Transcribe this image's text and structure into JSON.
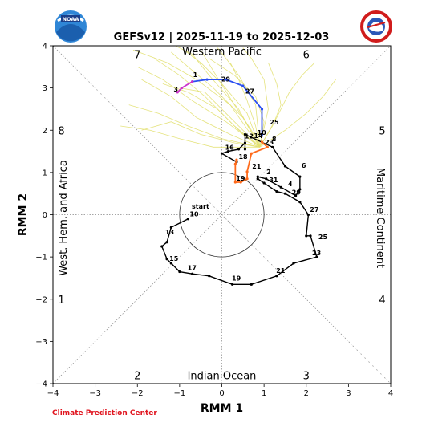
{
  "title": "GEFSv12 | 2025-11-19 to 2025-12-03",
  "credit": "Climate Prediction Center",
  "colors": {
    "observed": "#000000",
    "forecast_early": "#ff6a1a",
    "forecast_late": "#2a4ef0",
    "ensemble": "#e2e070",
    "forecast_tail": "#cc33cc",
    "credit": "#e0141e"
  },
  "logos": [
    "noaa-logo",
    "nws-logo"
  ],
  "chart_data": {
    "type": "line",
    "xlabel": "RMM 1",
    "ylabel": "RMM 2",
    "xlim": [
      -4,
      4
    ],
    "ylim": [
      -4,
      4
    ],
    "xticks": [
      "−4",
      "−3",
      "−2",
      "−1",
      "0",
      "1",
      "2",
      "3",
      "4"
    ],
    "yticks": [
      "−4",
      "−3",
      "−2",
      "−1",
      "0",
      "1",
      "2",
      "3",
      "4"
    ],
    "unit_circle_radius": 1,
    "regions": {
      "top": "Western Pacific",
      "bottom": "Indian Ocean",
      "left": "West. Hem. and Africa",
      "right": "Maritime Continent"
    },
    "phases": [
      {
        "label": "7",
        "x": -2.0,
        "y": 3.8
      },
      {
        "label": "6",
        "x": 2.0,
        "y": 3.8
      },
      {
        "label": "8",
        "x": -3.8,
        "y": 2.0
      },
      {
        "label": "5",
        "x": 3.8,
        "y": 2.0
      },
      {
        "label": "1",
        "x": -3.8,
        "y": -2.0
      },
      {
        "label": "4",
        "x": 3.8,
        "y": -2.0
      },
      {
        "label": "2",
        "x": -2.0,
        "y": -3.8
      },
      {
        "label": "3",
        "x": 2.0,
        "y": -3.8
      }
    ],
    "observed": {
      "points": [
        [
          -0.8,
          -0.1
        ],
        [
          -1.2,
          -0.3
        ],
        [
          -1.3,
          -0.65
        ],
        [
          -1.42,
          -0.75
        ],
        [
          -1.3,
          -1.05
        ],
        [
          -1.2,
          -1.15
        ],
        [
          -1.0,
          -1.35
        ],
        [
          -0.7,
          -1.4
        ],
        [
          -0.3,
          -1.45
        ],
        [
          0.25,
          -1.65
        ],
        [
          0.7,
          -1.65
        ],
        [
          1.3,
          -1.45
        ],
        [
          1.7,
          -1.15
        ],
        [
          2.25,
          -1.0
        ],
        [
          2.1,
          -0.5
        ],
        [
          2.0,
          -0.5
        ],
        [
          2.05,
          0.0
        ],
        [
          1.85,
          0.3
        ],
        [
          1.5,
          0.5
        ],
        [
          1.3,
          0.55
        ],
        [
          1.0,
          0.75
        ],
        [
          0.85,
          0.85
        ],
        [
          0.85,
          0.9
        ],
        [
          1.05,
          0.85
        ],
        [
          1.4,
          0.65
        ],
        [
          1.75,
          0.45
        ],
        [
          1.85,
          0.6
        ],
        [
          1.85,
          0.9
        ],
        [
          1.5,
          1.15
        ],
        [
          1.2,
          1.6
        ],
        [
          0.55,
          1.9
        ],
        [
          0.55,
          1.55
        ],
        [
          0.55,
          1.7
        ],
        [
          0.4,
          1.55
        ],
        [
          0.15,
          1.5
        ],
        [
          0.0,
          1.45
        ],
        [
          0.35,
          1.25
        ]
      ],
      "labels": [
        {
          "text": "start",
          "x": -0.75,
          "y": 0.1
        },
        {
          "text": "10",
          "x": -0.8,
          "y": -0.08
        },
        {
          "text": "13",
          "x": -1.38,
          "y": -0.5
        },
        {
          "text": "15",
          "x": -1.28,
          "y": -1.13
        },
        {
          "text": "17",
          "x": -0.85,
          "y": -1.35
        },
        {
          "text": "19",
          "x": 0.2,
          "y": -1.6
        },
        {
          "text": "21",
          "x": 1.25,
          "y": -1.42
        },
        {
          "text": "23",
          "x": 2.1,
          "y": -1.0
        },
        {
          "text": "25",
          "x": 2.25,
          "y": -0.62
        },
        {
          "text": "27",
          "x": 2.05,
          "y": 0.03
        },
        {
          "text": "29",
          "x": 1.62,
          "y": 0.44
        },
        {
          "text": "2",
          "x": 1.02,
          "y": 0.92
        },
        {
          "text": "31",
          "x": 1.08,
          "y": 0.73
        },
        {
          "text": "4",
          "x": 1.53,
          "y": 0.64
        },
        {
          "text": "6",
          "x": 1.85,
          "y": 1.07
        },
        {
          "text": "8",
          "x": 1.15,
          "y": 1.7
        },
        {
          "text": "10",
          "x": 0.8,
          "y": 1.85
        },
        {
          "text": "12",
          "x": 0.5,
          "y": 1.77
        },
        {
          "text": "14",
          "x": 0.72,
          "y": 1.78
        },
        {
          "text": "16",
          "x": 0.04,
          "y": 1.5
        },
        {
          "text": "18",
          "x": 0.36,
          "y": 1.28
        }
      ]
    },
    "forecast": {
      "early": [
        [
          0.95,
          1.72
        ],
        [
          1.08,
          1.6
        ],
        [
          0.7,
          1.45
        ],
        [
          0.6,
          1.02
        ],
        [
          0.6,
          0.85
        ],
        [
          0.45,
          0.77
        ],
        [
          0.32,
          0.77
        ],
        [
          0.32,
          1.2
        ],
        [
          0.35,
          1.3
        ]
      ],
      "late": [
        [
          0.95,
          1.9
        ],
        [
          0.95,
          2.5
        ],
        [
          0.5,
          3.05
        ],
        [
          0.1,
          3.2
        ],
        [
          -0.35,
          3.2
        ],
        [
          -0.7,
          3.15
        ]
      ],
      "tail": [
        [
          -0.7,
          3.15
        ],
        [
          -0.95,
          3.0
        ],
        [
          -1.05,
          2.9
        ]
      ],
      "labels": [
        {
          "text": "23",
          "x": 0.98,
          "y": 1.62
        },
        {
          "text": "21",
          "x": 0.68,
          "y": 1.05
        },
        {
          "text": "19",
          "x": 0.3,
          "y": 0.77
        },
        {
          "text": "25",
          "x": 1.1,
          "y": 2.1
        },
        {
          "text": "27",
          "x": 0.52,
          "y": 2.83
        },
        {
          "text": "29",
          "x": -0.05,
          "y": 3.12
        },
        {
          "text": "1",
          "x": -0.72,
          "y": 3.22
        },
        {
          "text": "3",
          "x": -1.18,
          "y": 2.88
        }
      ]
    },
    "ensemble_members": [
      [
        [
          0.9,
          1.6
        ],
        [
          0.3,
          2.1
        ],
        [
          -0.4,
          2.8
        ],
        [
          -1.0,
          3.3
        ],
        [
          -1.6,
          3.7
        ]
      ],
      [
        [
          0.9,
          1.6
        ],
        [
          0.5,
          2.3
        ],
        [
          -0.2,
          3.0
        ],
        [
          -0.8,
          3.5
        ],
        [
          -1.2,
          3.85
        ]
      ],
      [
        [
          0.9,
          1.6
        ],
        [
          0.6,
          2.4
        ],
        [
          0.0,
          3.1
        ],
        [
          -0.5,
          3.6
        ],
        [
          -0.9,
          3.9
        ]
      ],
      [
        [
          0.9,
          1.6
        ],
        [
          0.2,
          1.9
        ],
        [
          -0.6,
          2.3
        ],
        [
          -1.2,
          2.8
        ],
        [
          -1.9,
          3.2
        ]
      ],
      [
        [
          0.9,
          1.6
        ],
        [
          0.0,
          1.8
        ],
        [
          -0.8,
          2.1
        ],
        [
          -1.5,
          2.4
        ],
        [
          -2.2,
          2.6
        ]
      ],
      [
        [
          0.9,
          1.6
        ],
        [
          0.8,
          2.6
        ],
        [
          0.4,
          3.3
        ],
        [
          0.1,
          3.7
        ],
        [
          -0.1,
          3.95
        ]
      ],
      [
        [
          0.9,
          1.6
        ],
        [
          1.1,
          2.5
        ],
        [
          1.0,
          3.2
        ],
        [
          0.7,
          3.7
        ],
        [
          0.5,
          3.95
        ]
      ],
      [
        [
          0.9,
          1.6
        ],
        [
          1.3,
          2.3
        ],
        [
          1.6,
          2.9
        ],
        [
          1.9,
          3.3
        ],
        [
          2.2,
          3.6
        ]
      ],
      [
        [
          0.9,
          1.6
        ],
        [
          1.5,
          2.0
        ],
        [
          2.0,
          2.4
        ],
        [
          2.4,
          2.8
        ],
        [
          2.7,
          3.2
        ]
      ],
      [
        [
          0.9,
          1.6
        ],
        [
          0.4,
          2.5
        ],
        [
          -0.3,
          3.3
        ],
        [
          -0.7,
          3.8
        ],
        [
          -1.1,
          4.0
        ]
      ],
      [
        [
          0.9,
          1.6
        ],
        [
          0.1,
          2.2
        ],
        [
          -0.7,
          2.7
        ],
        [
          -1.4,
          3.2
        ],
        [
          -2.0,
          3.5
        ]
      ],
      [
        [
          0.9,
          1.6
        ],
        [
          -0.2,
          1.6
        ],
        [
          -1.0,
          1.8
        ],
        [
          -1.7,
          2.0
        ],
        [
          -2.4,
          2.1
        ]
      ],
      [
        [
          0.9,
          1.6
        ],
        [
          0.7,
          2.0
        ],
        [
          0.3,
          2.6
        ],
        [
          -0.2,
          3.4
        ],
        [
          -0.5,
          3.9
        ]
      ],
      [
        [
          0.9,
          1.6
        ],
        [
          1.0,
          2.2
        ],
        [
          0.8,
          2.8
        ],
        [
          0.3,
          3.3
        ],
        [
          -0.3,
          3.7
        ]
      ],
      [
        [
          0.9,
          1.6
        ],
        [
          0.2,
          2.6
        ],
        [
          -0.6,
          3.2
        ],
        [
          -1.3,
          3.6
        ],
        [
          -2.1,
          3.9
        ]
      ],
      [
        [
          0.9,
          1.6
        ],
        [
          1.2,
          2.1
        ],
        [
          1.4,
          2.6
        ],
        [
          1.3,
          3.1
        ],
        [
          1.1,
          3.6
        ]
      ],
      [
        [
          0.9,
          1.6
        ],
        [
          0.6,
          1.9
        ],
        [
          0.1,
          2.4
        ],
        [
          -0.4,
          2.9
        ],
        [
          -1.0,
          3.0
        ]
      ],
      [
        [
          0.9,
          1.6
        ],
        [
          0.3,
          1.7
        ],
        [
          -0.5,
          1.9
        ],
        [
          -1.2,
          2.2
        ],
        [
          -1.9,
          2.0
        ]
      ],
      [
        [
          0.9,
          1.6
        ],
        [
          0.8,
          2.1
        ],
        [
          0.6,
          2.7
        ],
        [
          0.4,
          3.2
        ],
        [
          0.2,
          3.6
        ]
      ],
      [
        [
          0.9,
          1.6
        ],
        [
          0.4,
          2.0
        ],
        [
          -0.1,
          2.5
        ],
        [
          -0.8,
          2.9
        ],
        [
          -1.4,
          3.1
        ]
      ]
    ]
  }
}
